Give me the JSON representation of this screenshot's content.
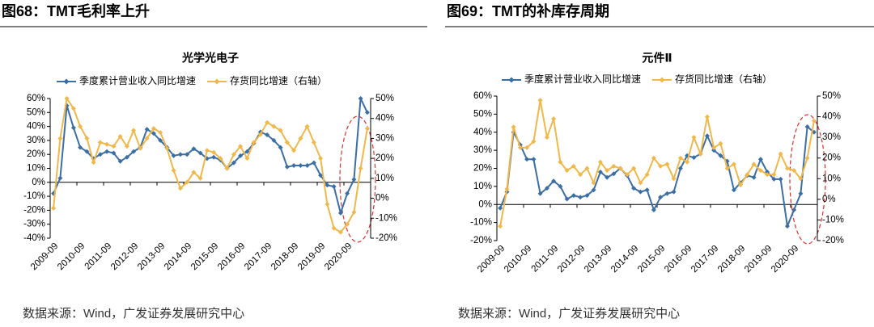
{
  "panels": [
    {
      "header": "图68：TMT毛利率上升",
      "source": "数据来源：Wind，广发证券发展研究中心"
    },
    {
      "header": "图69：TMT的补库存周期",
      "source": "数据来源：Wind，广发证券发展研究中心"
    }
  ],
  "chart_data": [
    {
      "type": "line",
      "title": "光学光电子",
      "categories": [
        "2009-09",
        null,
        null,
        null,
        "2010-09",
        null,
        null,
        null,
        "2011-09",
        null,
        null,
        null,
        "2012-09",
        null,
        null,
        null,
        "2013-09",
        null,
        null,
        null,
        "2014-09",
        null,
        null,
        null,
        "2015-09",
        null,
        null,
        null,
        "2016-09",
        null,
        null,
        null,
        "2017-09",
        null,
        null,
        null,
        "2018-09",
        null,
        null,
        null,
        "2019-09",
        null,
        null,
        null,
        "2020-09",
        null,
        null,
        null
      ],
      "series": [
        {
          "name": "季度累计营业收入同比增速",
          "color": "#3b6ea5",
          "values": [
            -8,
            3,
            55,
            39,
            25,
            22,
            17,
            20,
            22,
            21,
            15,
            18,
            22,
            25,
            38,
            35,
            30,
            25,
            19,
            20,
            20,
            24,
            21,
            17,
            18,
            16,
            10,
            14,
            19,
            22,
            28,
            36,
            34,
            30,
            25,
            11,
            12,
            12,
            12,
            14,
            5,
            -2,
            -3,
            -22,
            -8,
            2,
            60,
            50
          ]
        },
        {
          "name": "存货同比增速（右轴）",
          "color": "#f0b84a",
          "axis": "y2",
          "values": [
            -5,
            30,
            50,
            45,
            36,
            30,
            18,
            28,
            27,
            26,
            31,
            26,
            34,
            25,
            30,
            35,
            33,
            25,
            14,
            5,
            8,
            13,
            10,
            24,
            23,
            20,
            15,
            22,
            26,
            20,
            28,
            32,
            38,
            36,
            34,
            28,
            24,
            30,
            36,
            28,
            20,
            -3,
            -15,
            -17,
            -13,
            -7,
            15,
            35
          ]
        }
      ],
      "ylim": [
        -40,
        60
      ],
      "yticks": [
        {
          "value": -40,
          "label": "-40%"
        },
        {
          "value": -30,
          "label": "-30%"
        },
        {
          "value": -20,
          "label": "-20%"
        },
        {
          "value": -10,
          "label": "-10%"
        },
        {
          "value": 0,
          "label": "0%"
        },
        {
          "value": 10,
          "label": "10%"
        },
        {
          "value": 20,
          "label": "20%"
        },
        {
          "value": 30,
          "label": "30%"
        },
        {
          "value": 40,
          "label": "40%"
        },
        {
          "value": 50,
          "label": "50%"
        },
        {
          "value": 60,
          "label": "60%"
        }
      ],
      "y2lim": [
        -20,
        50
      ],
      "y2ticks": [
        {
          "value": -20,
          "label": "-20%"
        },
        {
          "value": -10,
          "label": "-10%"
        },
        {
          "value": 0,
          "label": "0%"
        },
        {
          "value": 10,
          "label": "10%"
        },
        {
          "value": 20,
          "label": "20%"
        },
        {
          "value": 30,
          "label": "30%"
        },
        {
          "value": 40,
          "label": "40%"
        },
        {
          "value": 50,
          "label": "50%"
        }
      ],
      "legend": "top"
    },
    {
      "type": "line",
      "title": "元件Ⅱ",
      "categories": [
        "2009-09",
        null,
        null,
        null,
        "2010-09",
        null,
        null,
        null,
        "2011-09",
        null,
        null,
        null,
        "2012-09",
        null,
        null,
        null,
        "2013-09",
        null,
        null,
        null,
        "2014-09",
        null,
        null,
        null,
        "2015-09",
        null,
        null,
        null,
        "2016-09",
        null,
        null,
        null,
        "2017-09",
        null,
        null,
        null,
        "2018-09",
        null,
        null,
        null,
        "2019-09",
        null,
        null,
        null,
        "2020-09",
        null,
        null,
        null
      ],
      "series": [
        {
          "name": "季度累计营业收入同比增速",
          "color": "#3b6ea5",
          "values": [
            -2,
            7,
            40,
            33,
            25,
            25,
            6,
            9,
            13,
            10,
            3,
            5,
            4,
            5,
            8,
            18,
            15,
            17,
            20,
            16,
            9,
            7,
            8,
            -3,
            4,
            6,
            7,
            20,
            27,
            26,
            28,
            38,
            30,
            27,
            24,
            8,
            12,
            16,
            15,
            25,
            18,
            14,
            14,
            -12,
            -3,
            6,
            43,
            40
          ]
        },
        {
          "name": "存货同比增速（右轴）",
          "color": "#f0b84a",
          "axis": "y2",
          "values": [
            -13,
            5,
            35,
            25,
            25,
            28,
            48,
            30,
            39,
            18,
            14,
            16,
            12,
            15,
            8,
            18,
            14,
            16,
            15,
            12,
            15,
            8,
            12,
            20,
            16,
            17,
            10,
            20,
            18,
            30,
            22,
            40,
            25,
            27,
            15,
            17,
            7,
            12,
            17,
            14,
            12,
            12,
            22,
            15,
            14,
            10,
            20,
            38
          ]
        }
      ],
      "ylim": [
        -20,
        60
      ],
      "yticks": [
        {
          "value": -20,
          "label": "-20%"
        },
        {
          "value": -10,
          "label": "-10%"
        },
        {
          "value": 0,
          "label": "0%"
        },
        {
          "value": 10,
          "label": "10%"
        },
        {
          "value": 20,
          "label": "20%"
        },
        {
          "value": 30,
          "label": "30%"
        },
        {
          "value": 40,
          "label": "40%"
        },
        {
          "value": 50,
          "label": "50%"
        },
        {
          "value": 60,
          "label": "60%"
        }
      ],
      "y2lim": [
        -20,
        50
      ],
      "y2ticks": [
        {
          "value": -20,
          "label": "-20%"
        },
        {
          "value": -10,
          "label": "-10%"
        },
        {
          "value": 0,
          "label": "0%"
        },
        {
          "value": 10,
          "label": "10%"
        },
        {
          "value": 20,
          "label": "20%"
        },
        {
          "value": 30,
          "label": "30%"
        },
        {
          "value": 40,
          "label": "40%"
        },
        {
          "value": 50,
          "label": "50%"
        }
      ],
      "legend": "top"
    }
  ]
}
